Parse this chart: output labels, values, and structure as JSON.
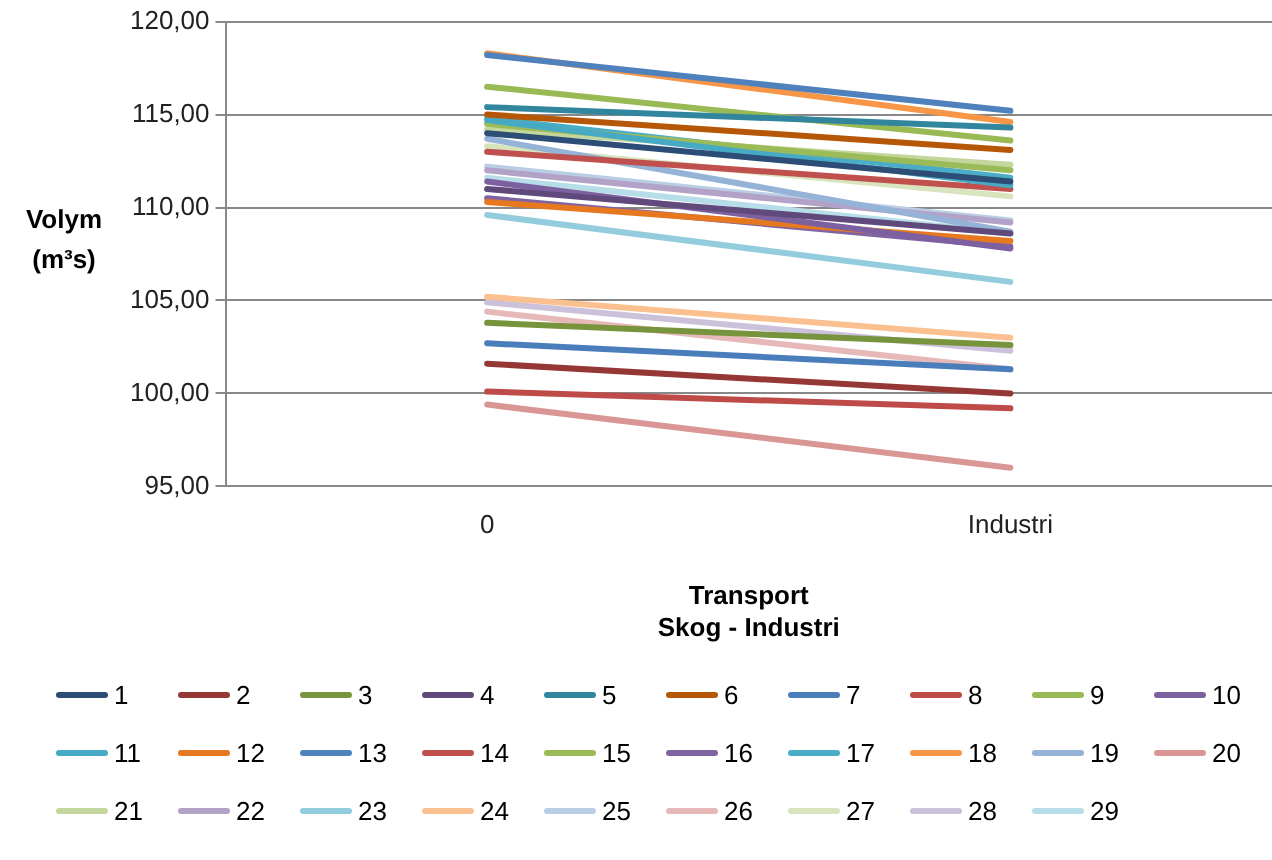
{
  "chart_data": {
    "type": "line",
    "xlabel": "Transport\nSkog - Industri",
    "ylabel": "Volym (m³s)",
    "categories": [
      "0",
      "Industri"
    ],
    "ylim": [
      95,
      120
    ],
    "yticks": [
      {
        "value": 95,
        "label": "95,00"
      },
      {
        "value": 100,
        "label": "100,00"
      },
      {
        "value": 105,
        "label": "105,00"
      },
      {
        "value": 110,
        "label": "110,00"
      },
      {
        "value": 115,
        "label": "115,00"
      },
      {
        "value": 120,
        "label": "120,00"
      }
    ],
    "grid": "y",
    "legend": "bottom",
    "marker": "none",
    "line_style": "solid",
    "series": [
      {
        "name": "1",
        "color": "#2c4d75",
        "values": [
          114.0,
          111.4
        ]
      },
      {
        "name": "2",
        "color": "#953735",
        "values": [
          101.6,
          100.0
        ]
      },
      {
        "name": "3",
        "color": "#77933c",
        "values": [
          103.8,
          102.6
        ]
      },
      {
        "name": "4",
        "color": "#604a7b",
        "values": [
          111.0,
          108.6
        ]
      },
      {
        "name": "5",
        "color": "#31859c",
        "values": [
          115.4,
          114.3
        ]
      },
      {
        "name": "6",
        "color": "#b65708",
        "values": [
          115.0,
          113.1
        ]
      },
      {
        "name": "7",
        "color": "#4a7ebb",
        "values": [
          102.7,
          101.3
        ]
      },
      {
        "name": "8",
        "color": "#be4b48",
        "values": [
          100.1,
          99.2
        ]
      },
      {
        "name": "9",
        "color": "#98b954",
        "values": [
          116.5,
          113.6
        ]
      },
      {
        "name": "10",
        "color": "#7d60a0",
        "values": [
          111.4,
          107.8
        ]
      },
      {
        "name": "11",
        "color": "#46aac5",
        "values": [
          114.7,
          111.2
        ]
      },
      {
        "name": "12",
        "color": "#e6781f",
        "values": [
          110.3,
          108.2
        ]
      },
      {
        "name": "13",
        "color": "#4f81bd",
        "values": [
          118.2,
          115.2
        ]
      },
      {
        "name": "14",
        "color": "#c0504d",
        "values": [
          113.0,
          111.0
        ]
      },
      {
        "name": "15",
        "color": "#9bbb59",
        "values": [
          114.5,
          112.0
        ]
      },
      {
        "name": "16",
        "color": "#8064a2",
        "values": [
          110.5,
          107.9
        ]
      },
      {
        "name": "17",
        "color": "#4bacc6",
        "values": [
          114.8,
          111.6
        ]
      },
      {
        "name": "18",
        "color": "#f79646",
        "values": [
          118.3,
          114.6
        ]
      },
      {
        "name": "19",
        "color": "#95b3d7",
        "values": [
          113.7,
          108.7
        ]
      },
      {
        "name": "20",
        "color": "#d99694",
        "values": [
          99.4,
          96.0
        ]
      },
      {
        "name": "21",
        "color": "#c3d69b",
        "values": [
          114.2,
          112.3
        ]
      },
      {
        "name": "22",
        "color": "#b3a2c7",
        "values": [
          112.0,
          109.2
        ]
      },
      {
        "name": "23",
        "color": "#93cddd",
        "values": [
          109.6,
          106.0
        ]
      },
      {
        "name": "24",
        "color": "#fac090",
        "values": [
          105.2,
          103.0
        ]
      },
      {
        "name": "25",
        "color": "#b9cde5",
        "values": [
          112.2,
          109.3
        ]
      },
      {
        "name": "26",
        "color": "#e6b9b8",
        "values": [
          104.4,
          101.3
        ]
      },
      {
        "name": "27",
        "color": "#d7e4bd",
        "values": [
          113.3,
          110.6
        ]
      },
      {
        "name": "28",
        "color": "#ccc1da",
        "values": [
          104.9,
          102.3
        ]
      },
      {
        "name": "29",
        "color": "#b7dee8",
        "values": [
          111.6,
          108.6
        ]
      }
    ]
  }
}
